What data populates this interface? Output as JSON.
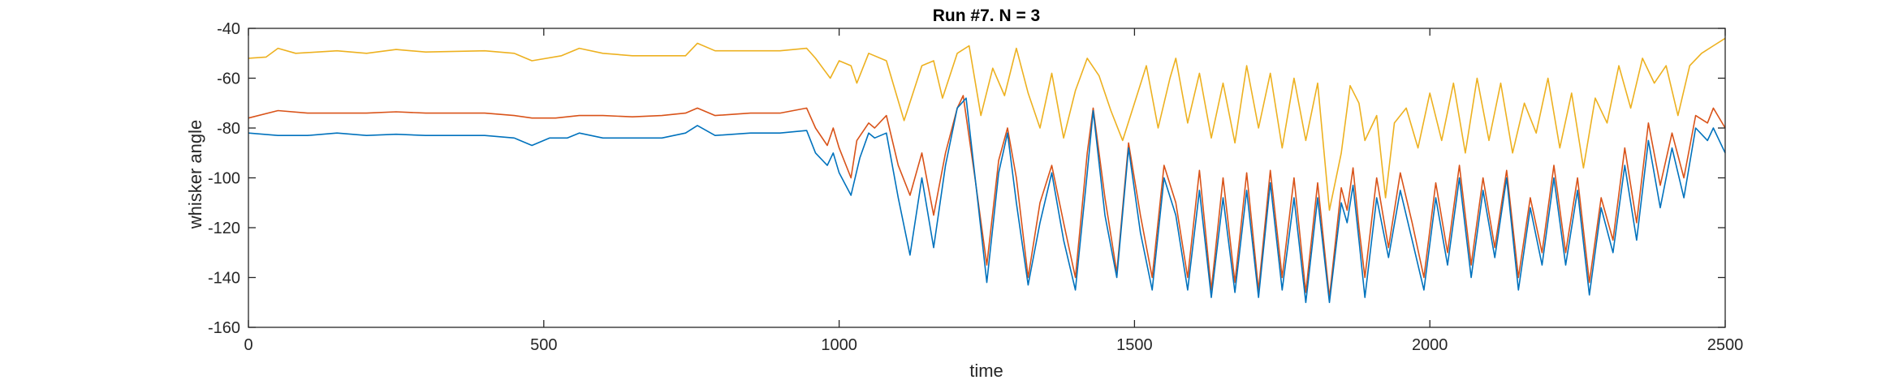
{
  "chart_data": {
    "type": "line",
    "title": "Run #7. N = 3",
    "xlabel": "time",
    "ylabel": "whisker angle",
    "xlim": [
      0,
      2500
    ],
    "ylim": [
      -160,
      -40
    ],
    "xticks": [
      0,
      500,
      1000,
      1500,
      2000,
      2500
    ],
    "yticks": [
      -160,
      -140,
      -120,
      -100,
      -80,
      -60,
      -40
    ],
    "grid": false,
    "series": [
      {
        "color": "#EDB120",
        "points": [
          [
            0,
            -52
          ],
          [
            30,
            -51.5
          ],
          [
            50,
            -48
          ],
          [
            80,
            -50
          ],
          [
            150,
            -49
          ],
          [
            200,
            -50
          ],
          [
            250,
            -48.5
          ],
          [
            300,
            -49.5
          ],
          [
            400,
            -49
          ],
          [
            450,
            -50
          ],
          [
            480,
            -53
          ],
          [
            530,
            -51
          ],
          [
            560,
            -48
          ],
          [
            600,
            -50
          ],
          [
            650,
            -51
          ],
          [
            700,
            -51
          ],
          [
            740,
            -51
          ],
          [
            760,
            -46
          ],
          [
            790,
            -49
          ],
          [
            850,
            -49
          ],
          [
            900,
            -49
          ],
          [
            945,
            -48
          ],
          [
            960,
            -52
          ],
          [
            985,
            -60
          ],
          [
            1000,
            -53
          ],
          [
            1020,
            -55
          ],
          [
            1030,
            -62
          ],
          [
            1050,
            -50
          ],
          [
            1080,
            -53
          ],
          [
            1110,
            -77
          ],
          [
            1140,
            -55
          ],
          [
            1160,
            -53
          ],
          [
            1175,
            -68
          ],
          [
            1200,
            -50
          ],
          [
            1220,
            -47
          ],
          [
            1240,
            -75
          ],
          [
            1260,
            -56
          ],
          [
            1280,
            -67
          ],
          [
            1300,
            -48
          ],
          [
            1320,
            -66
          ],
          [
            1340,
            -80
          ],
          [
            1360,
            -58
          ],
          [
            1380,
            -84
          ],
          [
            1400,
            -65
          ],
          [
            1420,
            -52
          ],
          [
            1440,
            -59
          ],
          [
            1460,
            -73
          ],
          [
            1480,
            -85
          ],
          [
            1500,
            -70
          ],
          [
            1520,
            -55
          ],
          [
            1540,
            -80
          ],
          [
            1560,
            -60
          ],
          [
            1570,
            -52
          ],
          [
            1590,
            -78
          ],
          [
            1610,
            -58
          ],
          [
            1630,
            -84
          ],
          [
            1650,
            -62
          ],
          [
            1670,
            -86
          ],
          [
            1690,
            -55
          ],
          [
            1710,
            -80
          ],
          [
            1730,
            -58
          ],
          [
            1750,
            -88
          ],
          [
            1770,
            -60
          ],
          [
            1790,
            -85
          ],
          [
            1810,
            -62
          ],
          [
            1830,
            -113
          ],
          [
            1850,
            -90
          ],
          [
            1865,
            -63
          ],
          [
            1880,
            -70
          ],
          [
            1890,
            -85
          ],
          [
            1910,
            -75
          ],
          [
            1925,
            -108
          ],
          [
            1940,
            -78
          ],
          [
            1960,
            -72
          ],
          [
            1980,
            -88
          ],
          [
            2000,
            -66
          ],
          [
            2020,
            -85
          ],
          [
            2040,
            -62
          ],
          [
            2060,
            -90
          ],
          [
            2080,
            -60
          ],
          [
            2100,
            -85
          ],
          [
            2120,
            -62
          ],
          [
            2140,
            -90
          ],
          [
            2160,
            -70
          ],
          [
            2180,
            -82
          ],
          [
            2200,
            -60
          ],
          [
            2220,
            -88
          ],
          [
            2240,
            -66
          ],
          [
            2260,
            -96
          ],
          [
            2280,
            -68
          ],
          [
            2300,
            -78
          ],
          [
            2320,
            -55
          ],
          [
            2340,
            -72
          ],
          [
            2360,
            -52
          ],
          [
            2380,
            -62
          ],
          [
            2400,
            -55
          ],
          [
            2420,
            -75
          ],
          [
            2440,
            -55
          ],
          [
            2460,
            -50
          ],
          [
            2480,
            -47
          ],
          [
            2500,
            -44
          ]
        ]
      },
      {
        "color": "#D95319",
        "points": [
          [
            0,
            -76
          ],
          [
            50,
            -73
          ],
          [
            100,
            -74
          ],
          [
            150,
            -74
          ],
          [
            200,
            -74
          ],
          [
            250,
            -73.5
          ],
          [
            300,
            -74
          ],
          [
            400,
            -74
          ],
          [
            450,
            -75
          ],
          [
            480,
            -76
          ],
          [
            520,
            -76
          ],
          [
            560,
            -75
          ],
          [
            600,
            -75
          ],
          [
            650,
            -75.5
          ],
          [
            700,
            -75
          ],
          [
            740,
            -74
          ],
          [
            760,
            -72
          ],
          [
            790,
            -75
          ],
          [
            850,
            -74
          ],
          [
            900,
            -74
          ],
          [
            945,
            -72
          ],
          [
            960,
            -80
          ],
          [
            980,
            -87
          ],
          [
            990,
            -80
          ],
          [
            1000,
            -88
          ],
          [
            1020,
            -100
          ],
          [
            1030,
            -85
          ],
          [
            1050,
            -78
          ],
          [
            1060,
            -80
          ],
          [
            1080,
            -75
          ],
          [
            1100,
            -95
          ],
          [
            1120,
            -107
          ],
          [
            1140,
            -90
          ],
          [
            1160,
            -115
          ],
          [
            1180,
            -90
          ],
          [
            1200,
            -72
          ],
          [
            1210,
            -67
          ],
          [
            1230,
            -100
          ],
          [
            1250,
            -135
          ],
          [
            1270,
            -93
          ],
          [
            1285,
            -80
          ],
          [
            1300,
            -100
          ],
          [
            1320,
            -140
          ],
          [
            1340,
            -110
          ],
          [
            1360,
            -95
          ],
          [
            1380,
            -118
          ],
          [
            1400,
            -140
          ],
          [
            1420,
            -90
          ],
          [
            1430,
            -72
          ],
          [
            1450,
            -108
          ],
          [
            1470,
            -138
          ],
          [
            1490,
            -86
          ],
          [
            1510,
            -115
          ],
          [
            1530,
            -140
          ],
          [
            1550,
            -95
          ],
          [
            1570,
            -110
          ],
          [
            1590,
            -140
          ],
          [
            1610,
            -97
          ],
          [
            1630,
            -145
          ],
          [
            1650,
            -100
          ],
          [
            1670,
            -142
          ],
          [
            1690,
            -98
          ],
          [
            1710,
            -145
          ],
          [
            1730,
            -97
          ],
          [
            1750,
            -140
          ],
          [
            1770,
            -100
          ],
          [
            1790,
            -146
          ],
          [
            1810,
            -102
          ],
          [
            1830,
            -148
          ],
          [
            1850,
            -104
          ],
          [
            1860,
            -113
          ],
          [
            1870,
            -96
          ],
          [
            1880,
            -120
          ],
          [
            1890,
            -140
          ],
          [
            1910,
            -100
          ],
          [
            1930,
            -128
          ],
          [
            1950,
            -98
          ],
          [
            1970,
            -118
          ],
          [
            1990,
            -140
          ],
          [
            2010,
            -102
          ],
          [
            2030,
            -130
          ],
          [
            2050,
            -95
          ],
          [
            2070,
            -135
          ],
          [
            2090,
            -100
          ],
          [
            2110,
            -128
          ],
          [
            2130,
            -97
          ],
          [
            2150,
            -140
          ],
          [
            2170,
            -108
          ],
          [
            2190,
            -130
          ],
          [
            2210,
            -95
          ],
          [
            2230,
            -130
          ],
          [
            2250,
            -100
          ],
          [
            2270,
            -142
          ],
          [
            2290,
            -108
          ],
          [
            2310,
            -125
          ],
          [
            2330,
            -88
          ],
          [
            2350,
            -118
          ],
          [
            2370,
            -78
          ],
          [
            2390,
            -103
          ],
          [
            2410,
            -82
          ],
          [
            2430,
            -100
          ],
          [
            2450,
            -75
          ],
          [
            2470,
            -78
          ],
          [
            2480,
            -72
          ],
          [
            2500,
            -80
          ]
        ]
      },
      {
        "color": "#0072BD",
        "points": [
          [
            0,
            -82
          ],
          [
            50,
            -83
          ],
          [
            100,
            -83
          ],
          [
            150,
            -82
          ],
          [
            200,
            -83
          ],
          [
            250,
            -82.5
          ],
          [
            300,
            -83
          ],
          [
            400,
            -83
          ],
          [
            450,
            -84
          ],
          [
            480,
            -87
          ],
          [
            510,
            -84
          ],
          [
            540,
            -84
          ],
          [
            560,
            -82
          ],
          [
            600,
            -84
          ],
          [
            650,
            -84
          ],
          [
            700,
            -84
          ],
          [
            740,
            -82
          ],
          [
            760,
            -79
          ],
          [
            790,
            -83
          ],
          [
            850,
            -82
          ],
          [
            900,
            -82
          ],
          [
            945,
            -81
          ],
          [
            960,
            -90
          ],
          [
            980,
            -95
          ],
          [
            990,
            -90
          ],
          [
            1000,
            -98
          ],
          [
            1020,
            -107
          ],
          [
            1035,
            -92
          ],
          [
            1050,
            -82
          ],
          [
            1060,
            -84
          ],
          [
            1080,
            -82
          ],
          [
            1100,
            -108
          ],
          [
            1120,
            -131
          ],
          [
            1140,
            -100
          ],
          [
            1160,
            -128
          ],
          [
            1180,
            -95
          ],
          [
            1200,
            -72
          ],
          [
            1215,
            -68
          ],
          [
            1235,
            -110
          ],
          [
            1250,
            -142
          ],
          [
            1270,
            -98
          ],
          [
            1285,
            -82
          ],
          [
            1300,
            -110
          ],
          [
            1320,
            -143
          ],
          [
            1340,
            -118
          ],
          [
            1360,
            -98
          ],
          [
            1380,
            -125
          ],
          [
            1400,
            -145
          ],
          [
            1420,
            -98
          ],
          [
            1430,
            -73
          ],
          [
            1450,
            -115
          ],
          [
            1470,
            -140
          ],
          [
            1490,
            -88
          ],
          [
            1510,
            -122
          ],
          [
            1530,
            -145
          ],
          [
            1550,
            -100
          ],
          [
            1570,
            -115
          ],
          [
            1590,
            -145
          ],
          [
            1610,
            -105
          ],
          [
            1630,
            -148
          ],
          [
            1650,
            -108
          ],
          [
            1670,
            -146
          ],
          [
            1690,
            -105
          ],
          [
            1710,
            -148
          ],
          [
            1730,
            -102
          ],
          [
            1750,
            -145
          ],
          [
            1770,
            -108
          ],
          [
            1790,
            -150
          ],
          [
            1810,
            -108
          ],
          [
            1830,
            -150
          ],
          [
            1850,
            -110
          ],
          [
            1860,
            -118
          ],
          [
            1870,
            -103
          ],
          [
            1880,
            -125
          ],
          [
            1890,
            -148
          ],
          [
            1910,
            -108
          ],
          [
            1930,
            -132
          ],
          [
            1950,
            -105
          ],
          [
            1970,
            -125
          ],
          [
            1990,
            -145
          ],
          [
            2010,
            -108
          ],
          [
            2030,
            -135
          ],
          [
            2050,
            -100
          ],
          [
            2070,
            -140
          ],
          [
            2090,
            -105
          ],
          [
            2110,
            -132
          ],
          [
            2130,
            -100
          ],
          [
            2150,
            -145
          ],
          [
            2170,
            -112
          ],
          [
            2190,
            -135
          ],
          [
            2210,
            -100
          ],
          [
            2230,
            -135
          ],
          [
            2250,
            -105
          ],
          [
            2270,
            -147
          ],
          [
            2290,
            -112
          ],
          [
            2310,
            -130
          ],
          [
            2330,
            -95
          ],
          [
            2350,
            -125
          ],
          [
            2370,
            -85
          ],
          [
            2390,
            -112
          ],
          [
            2410,
            -88
          ],
          [
            2430,
            -108
          ],
          [
            2450,
            -80
          ],
          [
            2470,
            -85
          ],
          [
            2480,
            -80
          ],
          [
            2500,
            -90
          ]
        ]
      }
    ]
  }
}
